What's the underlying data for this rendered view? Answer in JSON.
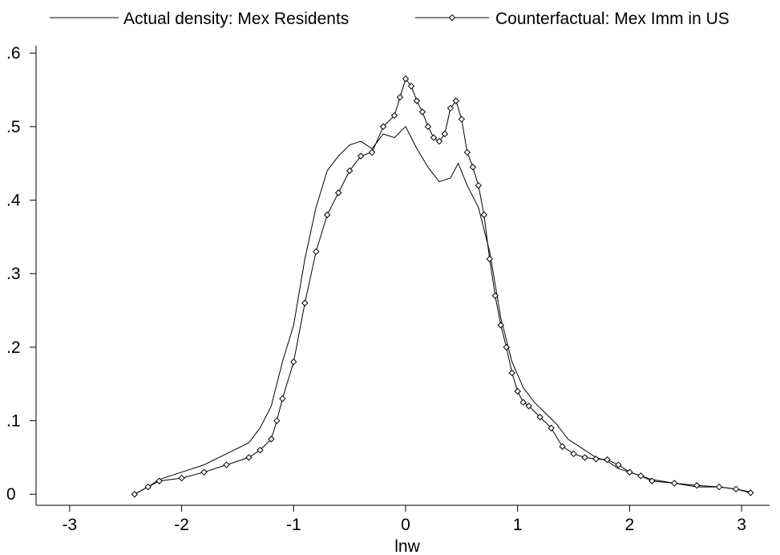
{
  "chart_data": {
    "type": "line",
    "title": "",
    "xlabel": "lnw",
    "ylabel": "",
    "xlim": [
      -3.3,
      3.25
    ],
    "ylim": [
      -0.015,
      0.61
    ],
    "xticks": [
      -3,
      -2,
      -1,
      0,
      1,
      2,
      3
    ],
    "yticks": [
      0,
      0.1,
      0.2,
      0.3,
      0.4,
      0.5,
      0.6
    ],
    "xtick_labels": [
      "-3",
      "-2",
      "-1",
      "0",
      "1",
      "2",
      "3"
    ],
    "ytick_labels": [
      "0",
      ".1",
      ".2",
      ".3",
      ".4",
      ".5",
      ".6"
    ],
    "grid": false,
    "legend_position": "top",
    "series": [
      {
        "name": "Actual density: Mex Residents",
        "marker": "none",
        "color": "#000000",
        "x": [
          -2.42,
          -2.3,
          -2.2,
          -2.0,
          -1.8,
          -1.6,
          -1.4,
          -1.3,
          -1.2,
          -1.1,
          -1.0,
          -0.9,
          -0.8,
          -0.7,
          -0.6,
          -0.5,
          -0.4,
          -0.3,
          -0.2,
          -0.1,
          0.0,
          0.1,
          0.2,
          0.3,
          0.4,
          0.47,
          0.55,
          0.65,
          0.75,
          0.85,
          0.95,
          1.05,
          1.15,
          1.25,
          1.35,
          1.45,
          1.55,
          1.7,
          1.8,
          1.9,
          2.0,
          2.1,
          2.2,
          2.4,
          2.6,
          2.8,
          2.95,
          3.08
        ],
        "y": [
          0.0,
          0.01,
          0.02,
          0.03,
          0.04,
          0.055,
          0.07,
          0.09,
          0.12,
          0.18,
          0.23,
          0.32,
          0.39,
          0.44,
          0.46,
          0.475,
          0.48,
          0.47,
          0.49,
          0.485,
          0.5,
          0.47,
          0.445,
          0.425,
          0.43,
          0.45,
          0.42,
          0.39,
          0.33,
          0.24,
          0.18,
          0.145,
          0.125,
          0.11,
          0.095,
          0.075,
          0.065,
          0.05,
          0.045,
          0.035,
          0.03,
          0.025,
          0.02,
          0.015,
          0.01,
          0.01,
          0.007,
          0.003
        ]
      },
      {
        "name": "Counterfactual: Mex Imm in US",
        "marker": "diamond",
        "color": "#000000",
        "x": [
          -2.42,
          -2.3,
          -2.2,
          -2.0,
          -1.8,
          -1.6,
          -1.4,
          -1.3,
          -1.2,
          -1.15,
          -1.1,
          -1.0,
          -0.9,
          -0.8,
          -0.7,
          -0.6,
          -0.5,
          -0.4,
          -0.3,
          -0.2,
          -0.1,
          -0.05,
          0.0,
          0.05,
          0.1,
          0.15,
          0.2,
          0.25,
          0.3,
          0.35,
          0.4,
          0.45,
          0.5,
          0.55,
          0.6,
          0.65,
          0.7,
          0.75,
          0.8,
          0.85,
          0.9,
          0.95,
          1.0,
          1.05,
          1.1,
          1.2,
          1.3,
          1.4,
          1.5,
          1.6,
          1.7,
          1.8,
          1.9,
          2.0,
          2.1,
          2.2,
          2.4,
          2.6,
          2.8,
          2.95,
          3.08
        ],
        "y": [
          0.0,
          0.01,
          0.018,
          0.022,
          0.03,
          0.04,
          0.05,
          0.06,
          0.075,
          0.1,
          0.13,
          0.18,
          0.26,
          0.33,
          0.38,
          0.41,
          0.44,
          0.46,
          0.465,
          0.5,
          0.515,
          0.54,
          0.565,
          0.555,
          0.535,
          0.52,
          0.5,
          0.485,
          0.48,
          0.49,
          0.525,
          0.535,
          0.51,
          0.465,
          0.445,
          0.42,
          0.38,
          0.32,
          0.27,
          0.23,
          0.2,
          0.165,
          0.14,
          0.125,
          0.12,
          0.105,
          0.09,
          0.065,
          0.055,
          0.05,
          0.048,
          0.047,
          0.04,
          0.03,
          0.025,
          0.018,
          0.015,
          0.012,
          0.01,
          0.007,
          0.002
        ]
      }
    ]
  }
}
